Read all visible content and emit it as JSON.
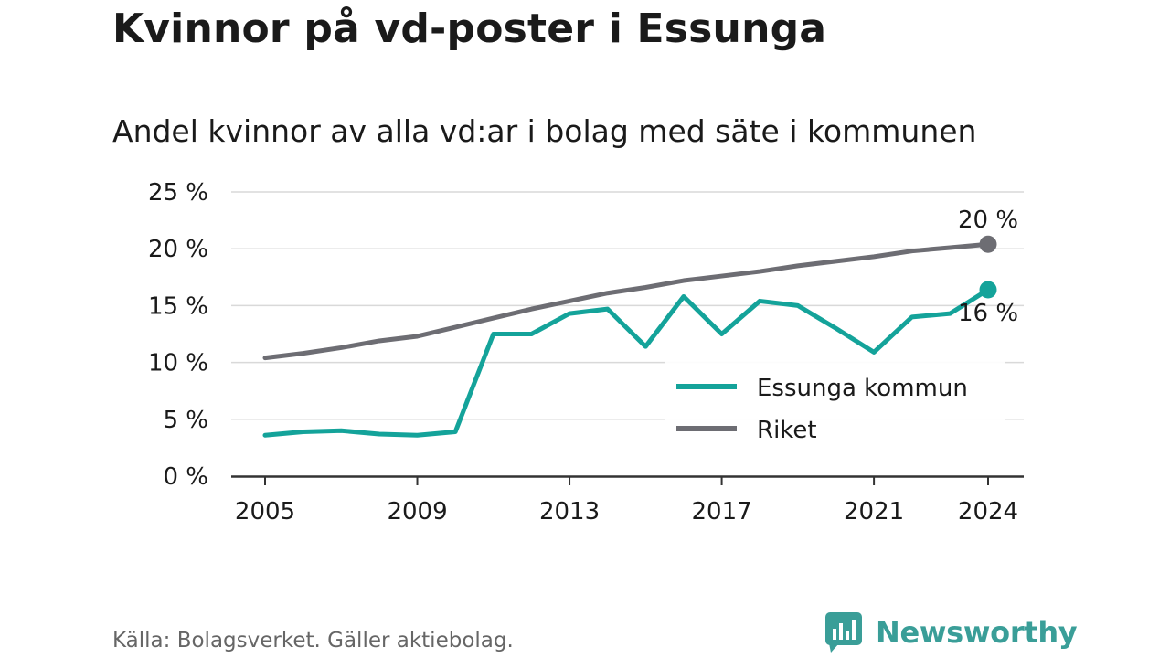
{
  "title": "Kvinnor på vd-poster i Essunga",
  "subtitle": "Andel kvinnor av alla vd:ar i bolag med säte i kommunen",
  "source": "Källa: Bolagsverket. Gäller aktiebolag.",
  "brand": {
    "name": "Newsworthy",
    "color": "#3a9e98",
    "icon": "newsworthy-logo-icon"
  },
  "chart_data": {
    "type": "line",
    "title": "Kvinnor på vd-poster i Essunga",
    "subtitle": "Andel kvinnor av alla vd:ar i bolag med säte i kommunen",
    "x": [
      2005,
      2006,
      2007,
      2008,
      2009,
      2010,
      2011,
      2012,
      2013,
      2014,
      2015,
      2016,
      2017,
      2018,
      2019,
      2020,
      2021,
      2022,
      2023,
      2024
    ],
    "xticks": [
      2005,
      2009,
      2013,
      2017,
      2021,
      2024
    ],
    "xtick_labels": [
      "2005",
      "2009",
      "2013",
      "2017",
      "2021",
      "2024"
    ],
    "yticks": [
      0,
      5,
      10,
      15,
      20,
      25
    ],
    "ytick_labels": [
      "0 %",
      "5 %",
      "10 %",
      "15 %",
      "20 %",
      "25 %"
    ],
    "ylim": [
      0,
      25
    ],
    "xlim": [
      2005,
      2024
    ],
    "grid": true,
    "legend": "right",
    "series": [
      {
        "name": "Essunga kommun",
        "color": "#14a39a",
        "values": [
          3.6,
          3.9,
          4.0,
          3.7,
          3.6,
          3.9,
          12.5,
          12.5,
          14.3,
          14.7,
          11.4,
          15.8,
          12.5,
          15.4,
          15.0,
          13.0,
          10.9,
          14.0,
          14.3,
          16.4
        ],
        "end_label": "16 %"
      },
      {
        "name": "Riket",
        "color": "#6d6d73",
        "values": [
          10.4,
          10.8,
          11.3,
          11.9,
          12.3,
          13.1,
          13.9,
          14.7,
          15.4,
          16.1,
          16.6,
          17.2,
          17.6,
          18.0,
          18.5,
          18.9,
          19.3,
          19.8,
          20.1,
          20.4
        ],
        "end_label": "20 %"
      }
    ]
  }
}
